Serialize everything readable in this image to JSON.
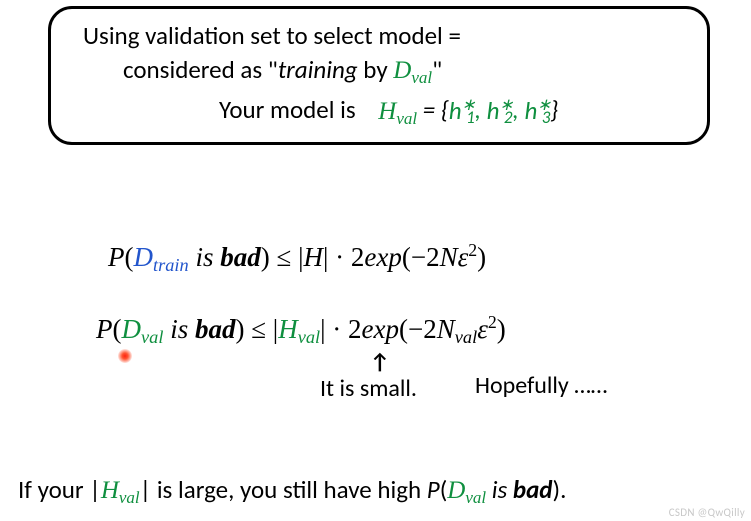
{
  "colors": {
    "green": "#0f8f3f",
    "blue": "#2255cc",
    "text": "#000000",
    "bg": "#ffffff",
    "reddot": "#ff2211",
    "watermark": "#c8c8c8"
  },
  "topbox": {
    "line1_a": "Using validation set to select model =",
    "line2_a": "considered as \"",
    "line2_b": "training",
    "line2_c": " by ",
    "line2_d_script": "D",
    "line2_d_sub": "val",
    "line2_e": "\"",
    "line3_a": "Your model is",
    "line3_h": "H",
    "line3_sub": "val",
    "line3_eq": " = {",
    "line3_h1": "h",
    "line3_s1sup": "∗",
    "line3_s1sub": "1",
    "line3_h2": "h",
    "line3_s2sup": "∗",
    "line3_s2sub": "2",
    "line3_h3": "h",
    "line3_s3sup": "∗",
    "line3_s3sub": "3",
    "line3_close": "}",
    "comma": ", "
  },
  "row1": {
    "P": "P",
    "open": "(",
    "D": "D",
    "Dsub": "train",
    "is": " is ",
    "bad": "bad",
    "close": ")",
    "le": " ≤ ",
    "bar1": "|",
    "H": "H",
    "bar2": "|",
    "dot": " · ",
    "two": "2",
    "exp": "exp",
    "op2": "(",
    "neg": "−",
    "twoN": "2",
    "N": "N",
    "eps": "ε",
    "sq": "2",
    "cl2": ")"
  },
  "row2": {
    "P": "P",
    "open": "(",
    "D": "D",
    "Dsub": "val",
    "is": " is ",
    "bad": "bad",
    "close": ")",
    "le": " ≤ ",
    "bar1": "|",
    "H": "H",
    "Hsub": "val",
    "bar2": "|",
    "dot": " · ",
    "two": "2",
    "exp": "exp",
    "op2": "(",
    "neg": "−",
    "twoN": "2",
    "N": "N",
    "Nsub": "val",
    "eps": "ε",
    "sq": "2",
    "cl2": ")"
  },
  "arrow": "↑",
  "caption1": "It is small.",
  "caption2": "Hopefully ……",
  "bottom": {
    "a": "If your |",
    "H": "H",
    "Hsub": "val",
    "b": "| is large, you still have high ",
    "P": "P",
    "open": "(",
    "D": "D",
    "Dsub": "val",
    "is": " is ",
    "bad": "bad",
    "close": ")",
    "dot": "."
  },
  "watermark": "CSDN @QwQilly"
}
